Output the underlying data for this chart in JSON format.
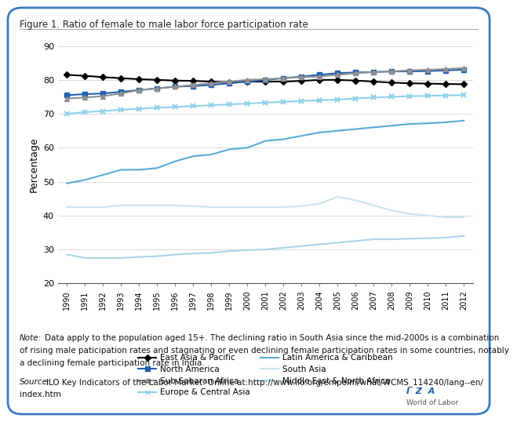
{
  "title": "Figure 1. Ratio of female to male labor force participation rate",
  "ylabel": "Percentage",
  "years": [
    1990,
    1991,
    1992,
    1993,
    1994,
    1995,
    1996,
    1997,
    1998,
    1999,
    2000,
    2001,
    2002,
    2003,
    2004,
    2005,
    2006,
    2007,
    2008,
    2009,
    2010,
    2011,
    2012
  ],
  "series": {
    "East Asia & Pacific": {
      "color": "#000000",
      "marker": "D",
      "markersize": 4,
      "linewidth": 1.5,
      "data": [
        81.5,
        81.2,
        80.8,
        80.5,
        80.2,
        80.0,
        79.8,
        79.7,
        79.5,
        79.3,
        79.5,
        79.5,
        79.5,
        79.7,
        80.0,
        80.0,
        79.8,
        79.5,
        79.2,
        79.0,
        78.9,
        78.8,
        78.7
      ]
    },
    "North America": {
      "color": "#2060b0",
      "marker": "s",
      "markersize": 4,
      "linewidth": 1.5,
      "data": [
        75.5,
        75.8,
        76.0,
        76.5,
        77.0,
        77.5,
        78.0,
        78.2,
        78.5,
        79.0,
        79.5,
        80.0,
        80.5,
        81.0,
        81.5,
        82.0,
        82.2,
        82.3,
        82.5,
        82.5,
        82.6,
        82.8,
        83.0
      ]
    },
    "Sub-Saharan Africa": {
      "color": "#909090",
      "marker": "^",
      "markersize": 4,
      "linewidth": 1.5,
      "data": [
        74.5,
        74.8,
        75.2,
        76.0,
        77.0,
        77.5,
        78.0,
        78.5,
        79.0,
        79.5,
        80.0,
        80.2,
        80.5,
        80.8,
        81.0,
        81.5,
        82.0,
        82.3,
        82.5,
        82.8,
        83.0,
        83.2,
        83.5
      ]
    },
    "Europe & Central Asia": {
      "color": "#8fd0e8",
      "marker": "x",
      "markersize": 5,
      "linewidth": 1.5,
      "markeredgewidth": 1.5,
      "data": [
        70.0,
        70.5,
        70.8,
        71.2,
        71.5,
        71.8,
        72.0,
        72.3,
        72.5,
        72.8,
        73.0,
        73.3,
        73.5,
        73.8,
        74.0,
        74.2,
        74.5,
        74.8,
        75.0,
        75.2,
        75.3,
        75.4,
        75.5
      ]
    },
    "Latin America & Caribbean": {
      "color": "#5baad8",
      "marker": null,
      "markersize": 0,
      "linewidth": 1.5,
      "data": [
        49.5,
        50.5,
        52.0,
        53.5,
        53.5,
        54.0,
        56.0,
        57.5,
        58.0,
        59.5,
        60.0,
        62.0,
        62.5,
        63.5,
        64.5,
        65.0,
        65.5,
        66.0,
        66.5,
        67.0,
        67.2,
        67.5,
        68.0
      ]
    },
    "South Asia": {
      "color": "#c8e4f0",
      "marker": null,
      "markersize": 0,
      "linewidth": 1.5,
      "data": [
        42.5,
        42.5,
        42.5,
        43.0,
        43.0,
        43.0,
        43.0,
        42.8,
        42.5,
        42.5,
        42.5,
        42.5,
        42.5,
        42.8,
        43.5,
        45.5,
        44.5,
        43.0,
        41.5,
        40.5,
        40.0,
        39.5,
        39.5
      ]
    },
    "Middle East & North Africa": {
      "color": "#a8d4e8",
      "marker": null,
      "markersize": 0,
      "linewidth": 1.5,
      "data": [
        28.5,
        27.5,
        27.5,
        27.5,
        27.8,
        28.0,
        28.5,
        28.8,
        29.0,
        29.5,
        29.8,
        30.0,
        30.5,
        31.0,
        31.5,
        32.0,
        32.5,
        33.0,
        33.0,
        33.2,
        33.3,
        33.5,
        34.0
      ]
    }
  },
  "ylim": [
    20,
    90
  ],
  "yticks": [
    20,
    30,
    40,
    50,
    60,
    70,
    80,
    90
  ],
  "note_label": "Note:",
  "note_text": " Data apply to the population aged 15+. The declining ratio in South Asia since the mid-2000s is a combination of rising male paticipation rates and stagnating or even declining female participation rates in some countries, notably a declining female participation rate in India.",
  "source_label": "Source:",
  "source_text": " ILO Key Indicators of the Labor Market. Online at:http://www.ilo.org/empelm/what/WCMS_114240/lang--en/\nindex.htm",
  "bg_color": "#ffffff",
  "border_color": "#3a7bbf",
  "title_color": "#222222",
  "axis_color": "#555555"
}
